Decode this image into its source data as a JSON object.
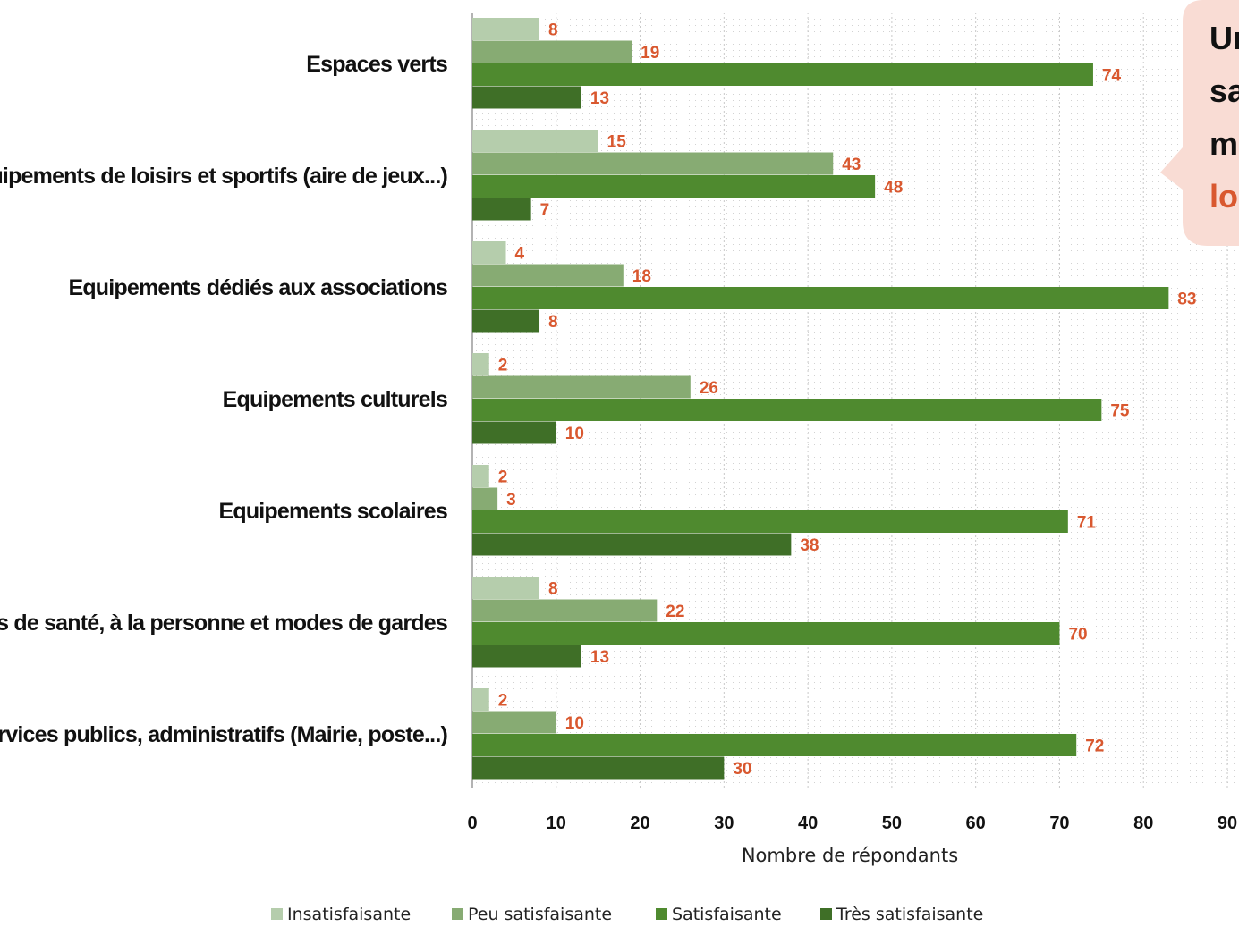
{
  "chart_data": {
    "type": "bar",
    "orientation": "horizontal",
    "categories": [
      "Espaces verts",
      "Equipements de loisirs et sportifs (aire de jeux...)",
      "Equipements dédiés aux associations",
      "Equipements culturels",
      "Equipements scolaires",
      "Services de santé, à la personne et modes de gardes",
      "Services publics, administratifs (Mairie, poste...)"
    ],
    "series": [
      {
        "name": "Insatisfaisante",
        "color": "#b5cdac",
        "values": [
          8,
          15,
          4,
          2,
          2,
          8,
          2
        ]
      },
      {
        "name": "Peu satisfaisante",
        "color": "#87ab73",
        "values": [
          19,
          43,
          18,
          26,
          3,
          22,
          10
        ]
      },
      {
        "name": "Satisfaisante",
        "color": "#4f8a2f",
        "values": [
          74,
          48,
          83,
          75,
          71,
          70,
          72
        ]
      },
      {
        "name": "Très satisfaisante",
        "color": "#3f6f27",
        "values": [
          13,
          7,
          8,
          10,
          38,
          13,
          30
        ]
      }
    ],
    "xlim": [
      0,
      90
    ],
    "xticks": [
      "0",
      "10",
      "20",
      "30",
      "40",
      "50",
      "60",
      "70",
      "80",
      "90"
    ],
    "xlabel": "Nombre de répondants",
    "ylabel": "",
    "grid": true,
    "data_labels": true,
    "legend_position": "bottom",
    "colors": {
      "label": "#d9582f",
      "callout_bg": "#f9dcd4"
    },
    "callout": {
      "lines": [
        {
          "text": "Un",
          "color": "#111111"
        },
        {
          "text": "sa",
          "color": "#111111"
        },
        {
          "text": "mo",
          "color": "#111111"
        },
        {
          "text": "loi",
          "color": "#d9582f"
        }
      ]
    }
  }
}
